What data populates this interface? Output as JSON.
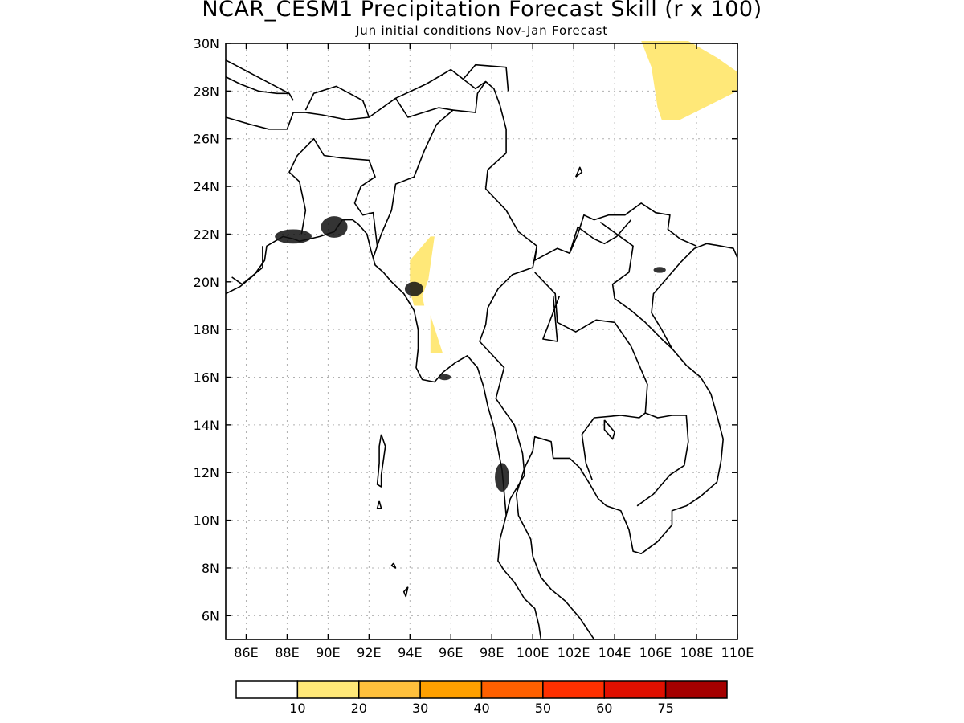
{
  "title": "NCAR_CESM1 Precipitation Forecast Skill (r x 100)",
  "subtitle": "Jun initial conditions  Nov-Jan Forecast",
  "chart_data": {
    "type": "heatmap",
    "lon_range": [
      85,
      110
    ],
    "lat_range": [
      5,
      30
    ],
    "lon_ticks": [
      "86E",
      "88E",
      "90E",
      "92E",
      "94E",
      "96E",
      "98E",
      "100E",
      "102E",
      "104E",
      "106E",
      "108E",
      "110E"
    ],
    "lat_ticks": [
      "6N",
      "8N",
      "10N",
      "12N",
      "14N",
      "16N",
      "18N",
      "20N",
      "22N",
      "24N",
      "26N",
      "28N",
      "30N"
    ],
    "grid": true,
    "colorbar": {
      "labels": [
        "10",
        "20",
        "30",
        "40",
        "50",
        "60",
        "75"
      ],
      "colors": [
        "#ffffff",
        "#ffe878",
        "#ffc03c",
        "#ffa000",
        "#ff6000",
        "#ff3000",
        "#e01000",
        "#a50000"
      ]
    },
    "shaded_regions": [
      {
        "level": "10-20",
        "color": "#ffe878",
        "location": "central Myanmar near 94-95E, 19-22N"
      },
      {
        "level": "10-20",
        "color": "#ffe878",
        "location": "southern Myanmar near 95E, 17-18.5N"
      },
      {
        "level": "10-20",
        "color": "#ffe878",
        "location": "southern China near 105-110E, 27-30N"
      }
    ]
  }
}
